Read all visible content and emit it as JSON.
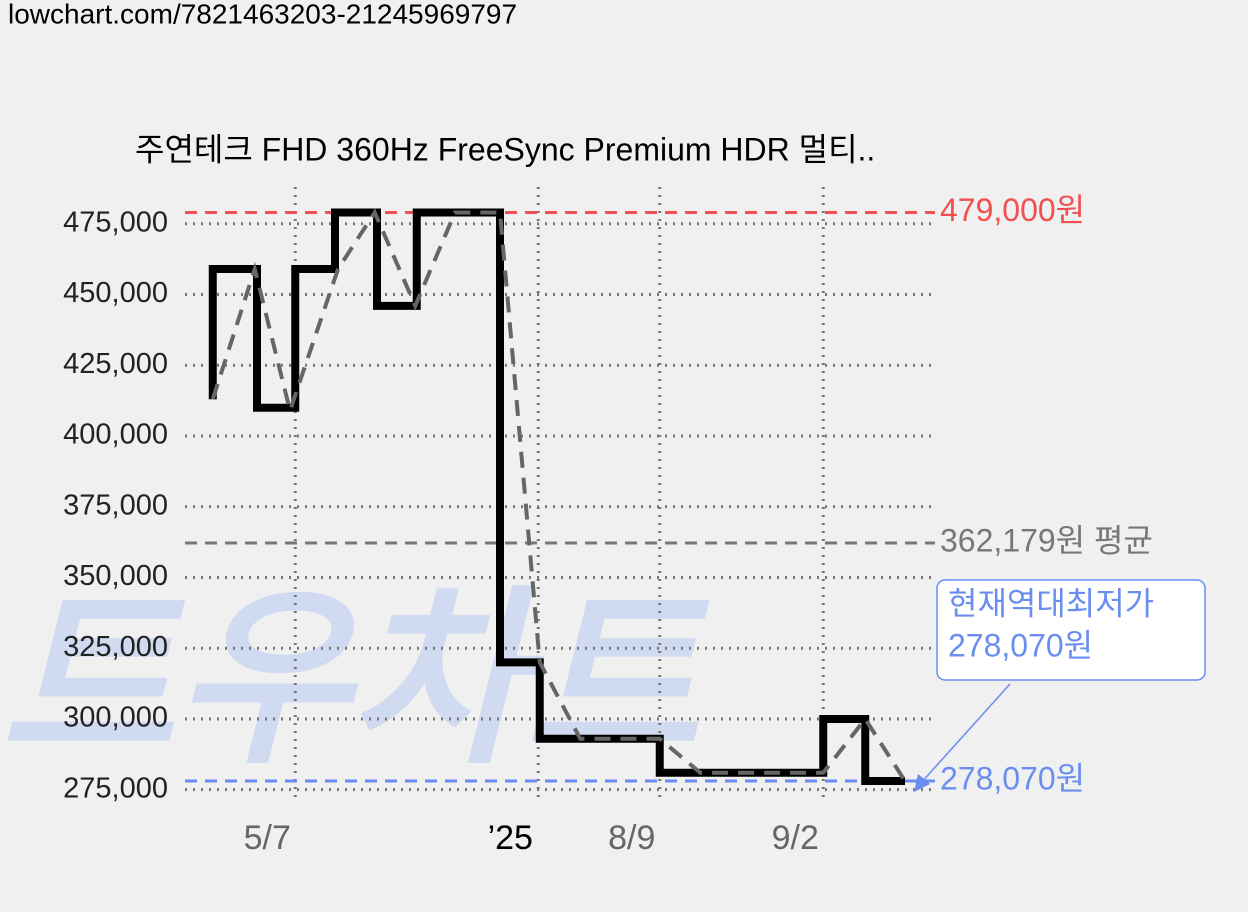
{
  "url": "lowchart.com/7821463203-21245969797",
  "chart_data": {
    "type": "step-price",
    "title": "주연테크 FHD 360Hz FreeSync Premium HDR 멀티..",
    "watermark": "트우차트",
    "ylim": [
      271000,
      488000
    ],
    "yticks": [
      {
        "value": 275000,
        "label": "275,000"
      },
      {
        "value": 300000,
        "label": "300,000"
      },
      {
        "value": 325000,
        "label": "325,000"
      },
      {
        "value": 350000,
        "label": "350,000"
      },
      {
        "value": 375000,
        "label": "375,000"
      },
      {
        "value": 400000,
        "label": "400,000"
      },
      {
        "value": 425000,
        "label": "425,000"
      },
      {
        "value": 450000,
        "label": "450,000"
      },
      {
        "value": 475000,
        "label": "475,000"
      }
    ],
    "xlim": [
      0,
      100
    ],
    "xticks": [
      {
        "value": 14.7,
        "label": "5/7"
      },
      {
        "value": 47.1,
        "label": "’25"
      },
      {
        "value": 63.3,
        "label": "8/9"
      },
      {
        "value": 85.1,
        "label": "9/2"
      }
    ],
    "grid": true,
    "series": [
      {
        "color": "#000000",
        "style": "step",
        "x": [
          3.7,
          3.7,
          9.6,
          14.7,
          20,
          25.6,
          30.9,
          42,
          47.3,
          63.3,
          85.1,
          90.7,
          96
        ],
        "values": [
          413000,
          459000,
          410000,
          459000,
          479000,
          446000,
          479000,
          320000,
          293000,
          281000,
          300000,
          278070,
          278070
        ]
      },
      {
        "color": "#666666",
        "style": "dashed",
        "x": [
          3.7,
          9.3,
          14,
          20.4,
          25.3,
          30.7,
          36,
          42,
          47.3,
          52.7,
          63.3,
          68.7,
          85.1,
          90.7,
          96
        ],
        "values": [
          413000,
          459000,
          409000,
          459000,
          479000,
          446000,
          479000,
          479000,
          320000,
          293000,
          293000,
          281000,
          281000,
          300000,
          278070
        ]
      }
    ],
    "reference_lines": [
      {
        "value": 479000,
        "label": "479,000원",
        "color": "#f05050"
      },
      {
        "value": 362179,
        "label": "362,179원 평균",
        "color": "#777777"
      },
      {
        "value": 278070,
        "label": "278,070원",
        "color": "#6a8ef0"
      }
    ],
    "annotation": {
      "lines": [
        "현재역대최저가",
        "278,070원"
      ],
      "color": "#6a8ef0"
    }
  }
}
